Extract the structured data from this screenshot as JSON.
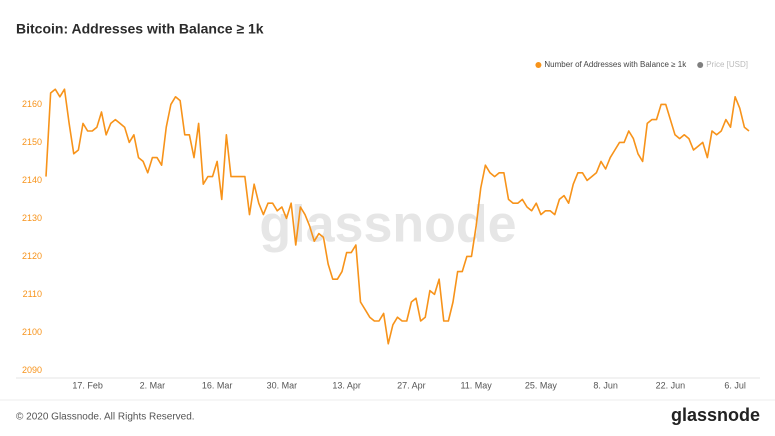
{
  "chart_data": {
    "type": "line",
    "title": "Bitcoin: Addresses with Balance ≥ 1k",
    "watermark": "glassnode",
    "categories": [
      null,
      null,
      null,
      null,
      null,
      null,
      null,
      null,
      null,
      "17. Feb",
      null,
      null,
      null,
      null,
      null,
      null,
      null,
      null,
      null,
      null,
      null,
      null,
      null,
      "2. Mar",
      null,
      null,
      null,
      null,
      null,
      null,
      null,
      null,
      null,
      null,
      null,
      null,
      null,
      "16. Mar",
      null,
      null,
      null,
      null,
      null,
      null,
      null,
      null,
      null,
      null,
      null,
      null,
      null,
      "30. Mar",
      null,
      null,
      null,
      null,
      null,
      null,
      null,
      null,
      null,
      null,
      null,
      null,
      null,
      "13. Apr",
      null,
      null,
      null,
      null,
      null,
      null,
      null,
      null,
      null,
      null,
      null,
      null,
      null,
      "27. Apr",
      null,
      null,
      null,
      null,
      null,
      null,
      null,
      null,
      null,
      null,
      null,
      null,
      null,
      "11. May",
      null,
      null,
      null,
      null,
      null,
      null,
      null,
      null,
      null,
      null,
      null,
      null,
      null,
      "25. May",
      null,
      null,
      null,
      null,
      null,
      null,
      null,
      null,
      null,
      null,
      null,
      null,
      null,
      "8. Jun",
      null,
      null,
      null,
      null,
      null,
      null,
      null,
      null,
      null,
      null,
      null,
      null,
      null,
      "22. Jun",
      null,
      null,
      null,
      null,
      null,
      null,
      null,
      null,
      null,
      null,
      null,
      null,
      null,
      "6. Jul",
      null,
      null,
      null
    ],
    "series": [
      {
        "name": "Number of Addresses with Balance ≥ 1k",
        "color": "#f7931a",
        "values": [
          2141,
          2163,
          2164,
          2162,
          2164,
          2155,
          2147,
          2148,
          2155,
          2153,
          2153,
          2154,
          2158,
          2152,
          2155,
          2156,
          2155,
          2154,
          2150,
          2152,
          2146,
          2145,
          2142,
          2146,
          2146,
          2144,
          2154,
          2160,
          2162,
          2161,
          2152,
          2152,
          2146,
          2155,
          2139,
          2141,
          2141,
          2145,
          2135,
          2152,
          2141,
          2141,
          2141,
          2141,
          2131,
          2139,
          2134,
          2131,
          2134,
          2134,
          2132,
          2133,
          2130,
          2134,
          2123,
          2133,
          2131,
          2128,
          2124,
          2126,
          2125,
          2118,
          2114,
          2114,
          2116,
          2121,
          2121,
          2123,
          2108,
          2106,
          2104,
          2103,
          2103,
          2105,
          2097,
          2102,
          2104,
          2103,
          2103,
          2108,
          2109,
          2103,
          2104,
          2111,
          2110,
          2114,
          2103,
          2103,
          2108,
          2116,
          2116,
          2120,
          2120,
          2128,
          2138,
          2144,
          2142,
          2141,
          2142,
          2142,
          2135,
          2134,
          2134,
          2135,
          2133,
          2132,
          2134,
          2131,
          2132,
          2132,
          2131,
          2135,
          2136,
          2134,
          2139,
          2142,
          2142,
          2140,
          2141,
          2142,
          2145,
          2143,
          2146,
          2148,
          2150,
          2150,
          2153,
          2151,
          2147,
          2145,
          2155,
          2156,
          2156,
          2160,
          2160,
          2156,
          2152,
          2151,
          2152,
          2151,
          2148,
          2149,
          2150,
          2146,
          2153,
          2152,
          2153,
          2156,
          2154,
          2162,
          2159,
          2154,
          2153
        ]
      },
      {
        "name": "Price [USD]",
        "color": "#7f7f7f",
        "hidden": true
      }
    ],
    "ylim": [
      2088,
      2173
    ],
    "yticks": [
      2090,
      2100,
      2110,
      2120,
      2130,
      2140,
      2150,
      2160
    ],
    "legend": "top-right"
  },
  "footer": {
    "copyright": "© 2020 Glassnode. All Rights Reserved.",
    "logo": "glassnode"
  }
}
